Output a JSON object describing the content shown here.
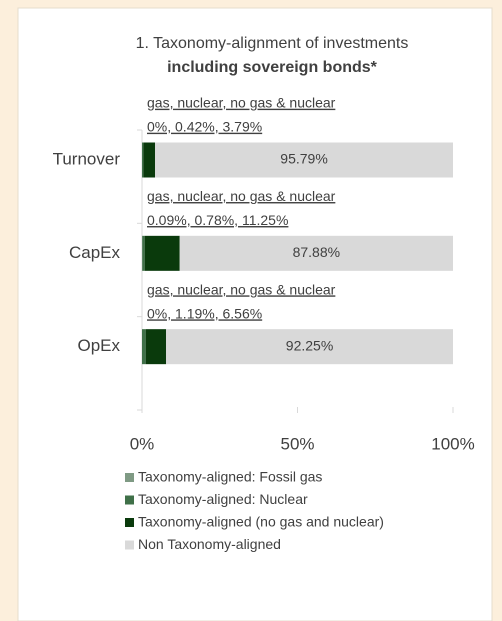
{
  "chart_data": {
    "type": "stacked-bar-horizontal",
    "title": "1. Taxonomy-alignment of investments",
    "subtitle": "including sovereign bonds*",
    "categories": [
      "Turnover",
      "CapEx",
      "OpEx"
    ],
    "annotations": [
      [
        "gas, nuclear, no gas & nuclear",
        "0%, 0.42%, 3.79%"
      ],
      [
        "gas, nuclear, no gas & nuclear",
        "0.09%, 0.78%, 11.25%"
      ],
      [
        "gas, nuclear, no gas & nuclear",
        "0%, 1.19%, 6.56%"
      ]
    ],
    "series": [
      {
        "name": "Taxonomy-aligned: Fossil gas",
        "color": "#7f9a84",
        "values": [
          0,
          0.09,
          0
        ]
      },
      {
        "name": "Taxonomy-aligned: Nuclear",
        "color": "#3f7048",
        "values": [
          0.42,
          0.78,
          1.19
        ]
      },
      {
        "name": "Taxonomy-aligned (no gas and nuclear)",
        "color": "#0a3a0c",
        "values": [
          3.79,
          11.25,
          6.56
        ]
      },
      {
        "name": "Non Taxonomy-aligned",
        "color": "#d9d9d9",
        "values": [
          95.79,
          87.88,
          92.25
        ],
        "value_labels": [
          "95.79%",
          "87.88%",
          "92.25%"
        ]
      }
    ],
    "xlim": [
      0,
      100
    ],
    "xticks": [
      {
        "value": 0,
        "label": "0%"
      },
      {
        "value": 50,
        "label": "50%"
      },
      {
        "value": 100,
        "label": "100%"
      }
    ]
  }
}
